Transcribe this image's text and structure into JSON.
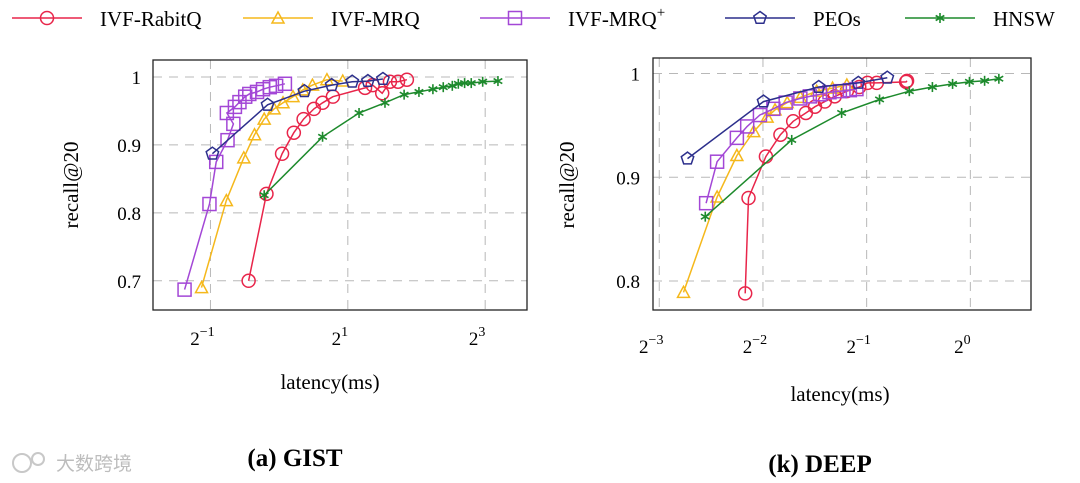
{
  "legend": [
    {
      "name": "IVF-RabitQ",
      "marker": "circle",
      "color": "#e8254a"
    },
    {
      "name": "IVF-MRQ",
      "marker": "triangle",
      "color": "#f5b81b"
    },
    {
      "name": "IVF-MRQ",
      "sup": "+",
      "marker": "square",
      "color": "#a347d6"
    },
    {
      "name": "PEOs",
      "marker": "pentagon",
      "color": "#2c2f8c"
    },
    {
      "name": "HNSW",
      "marker": "star",
      "color": "#1d8a2c"
    }
  ],
  "watermark": "大数跨境",
  "chart_data": [
    {
      "type": "line",
      "title": "(a) GIST",
      "xlabel": "latency(ms)",
      "ylabel": "recall@20",
      "xscale": "log2",
      "xlim": [
        0.28,
        12.2
      ],
      "ylim": [
        0.657,
        1.025
      ],
      "grid": true,
      "xticks": [
        {
          "value": 0.5,
          "base": "2",
          "exp": "−1"
        },
        {
          "value": 2,
          "base": "2",
          "exp": "1"
        },
        {
          "value": 8,
          "base": "2",
          "exp": "3"
        }
      ],
      "yticks": [
        {
          "value": 0.7,
          "label": "0.7"
        },
        {
          "value": 0.8,
          "label": "0.8"
        },
        {
          "value": 0.9,
          "label": "0.9"
        },
        {
          "value": 1.0,
          "label": "1"
        }
      ],
      "series": [
        {
          "name": "IVF-RabitQ",
          "x": [
            0.735,
            0.88,
            1.03,
            1.16,
            1.28,
            1.42,
            1.55,
            1.72,
            2.38,
            2.57,
            2.83,
            3.06,
            3.32,
            3.63
          ],
          "y": [
            0.7,
            0.828,
            0.887,
            0.918,
            0.938,
            0.953,
            0.962,
            0.971,
            0.984,
            0.988,
            0.976,
            0.993,
            0.993,
            0.996
          ]
        },
        {
          "name": "IVF-MRQ",
          "x": [
            0.457,
            0.587,
            0.7,
            0.78,
            0.86,
            0.95,
            1.04,
            1.15,
            1.27,
            1.4,
            1.62,
            1.9
          ],
          "y": [
            0.69,
            0.818,
            0.881,
            0.915,
            0.938,
            0.953,
            0.962,
            0.971,
            0.981,
            0.988,
            0.996,
            0.994
          ]
        },
        {
          "name": "IVF-MRQ+",
          "x": [
            0.385,
            0.495,
            0.53,
            0.594,
            0.63,
            0.59,
            0.64,
            0.67,
            0.71,
            0.74,
            0.8,
            0.85,
            0.91,
            0.97,
            1.06
          ],
          "y": [
            0.687,
            0.813,
            0.875,
            0.907,
            0.931,
            0.947,
            0.956,
            0.963,
            0.971,
            0.975,
            0.978,
            0.982,
            0.985,
            0.987,
            0.99
          ]
        },
        {
          "name": "PEOs",
          "x": [
            0.51,
            0.89,
            1.29,
            1.7,
            2.09,
            2.45,
            2.85
          ],
          "y": [
            0.887,
            0.959,
            0.979,
            0.988,
            0.993,
            0.994,
            0.997
          ]
        },
        {
          "name": "HNSW",
          "x": [
            0.86,
            1.55,
            2.24,
            2.91,
            3.53,
            4.1,
            4.72,
            5.24,
            5.74,
            6.1,
            6.5,
            6.95,
            7.8,
            9.1
          ],
          "y": [
            0.826,
            0.912,
            0.947,
            0.962,
            0.974,
            0.978,
            0.982,
            0.985,
            0.987,
            0.99,
            0.991,
            0.991,
            0.993,
            0.994
          ]
        }
      ]
    },
    {
      "type": "line",
      "title": "(k) DEEP",
      "xlabel": "latency(ms)",
      "ylabel": "recall@20",
      "xscale": "log2",
      "xlim": [
        0.083,
        1.5
      ],
      "ylim": [
        0.772,
        1.015
      ],
      "grid": true,
      "xticks": [
        {
          "value": 0.125,
          "base": "2",
          "exp": "−3"
        },
        {
          "value": 0.25,
          "base": "2",
          "exp": "−2"
        },
        {
          "value": 0.5,
          "base": "2",
          "exp": "−1"
        },
        {
          "value": 1,
          "base": "2",
          "exp": "0"
        }
      ],
      "yticks": [
        {
          "value": 0.8,
          "label": "0.8"
        },
        {
          "value": 0.9,
          "label": "0.9"
        },
        {
          "value": 1.0,
          "label": "1"
        }
      ],
      "series": [
        {
          "name": "IVF-RabitQ",
          "x": [
            0.222,
            0.227,
            0.255,
            0.281,
            0.306,
            0.333,
            0.354,
            0.378,
            0.404,
            0.438,
            0.476,
            0.503,
            0.535,
            0.651,
            0.655
          ],
          "y": [
            0.788,
            0.88,
            0.92,
            0.941,
            0.954,
            0.962,
            0.968,
            0.973,
            0.978,
            0.983,
            0.987,
            0.991,
            0.991,
            0.992,
            0.993
          ]
        },
        {
          "name": "IVF-MRQ",
          "x": [
            0.147,
            0.184,
            0.21,
            0.235,
            0.257,
            0.271,
            0.294,
            0.321,
            0.358,
            0.398,
            0.438
          ],
          "y": [
            0.789,
            0.881,
            0.921,
            0.944,
            0.958,
            0.965,
            0.972,
            0.977,
            0.983,
            0.986,
            0.989
          ]
        },
        {
          "name": "IVF-MRQ+",
          "x": [
            0.171,
            0.184,
            0.21,
            0.225,
            0.245,
            0.268,
            0.291,
            0.321,
            0.342,
            0.366,
            0.39,
            0.418,
            0.447,
            0.467
          ],
          "y": [
            0.875,
            0.915,
            0.938,
            0.949,
            0.96,
            0.966,
            0.972,
            0.976,
            0.978,
            0.98,
            0.982,
            0.983,
            0.984,
            0.985
          ]
        },
        {
          "name": "PEOs",
          "x": [
            0.151,
            0.251,
            0.363,
            0.473,
            0.574
          ],
          "y": [
            0.918,
            0.973,
            0.987,
            0.991,
            0.996
          ]
        },
        {
          "name": "HNSW",
          "x": [
            0.17,
            0.303,
            0.423,
            0.545,
            0.665,
            0.776,
            0.888,
            0.994,
            1.1,
            1.21
          ],
          "y": [
            0.862,
            0.936,
            0.962,
            0.975,
            0.983,
            0.987,
            0.99,
            0.992,
            0.993,
            0.995
          ]
        }
      ]
    }
  ]
}
